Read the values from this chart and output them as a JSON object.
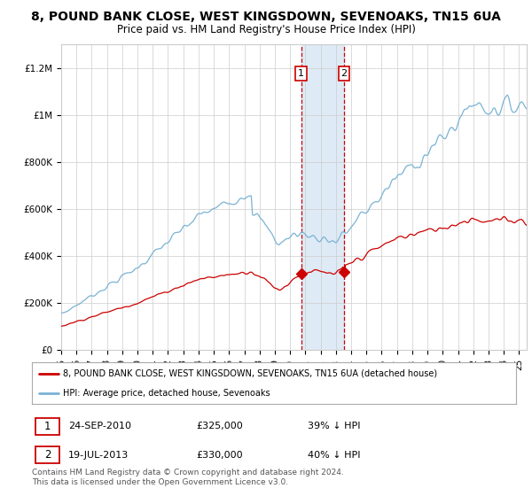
{
  "title": "8, POUND BANK CLOSE, WEST KINGSDOWN, SEVENOAKS, TN15 6UA",
  "subtitle": "Price paid vs. HM Land Registry's House Price Index (HPI)",
  "ylim": [
    0,
    1300000
  ],
  "yticks": [
    0,
    200000,
    400000,
    600000,
    800000,
    1000000,
    1200000
  ],
  "ytick_labels": [
    "£0",
    "£200K",
    "£400K",
    "£600K",
    "£800K",
    "£1M",
    "£1.2M"
  ],
  "hpi_color": "#7ab3d4",
  "price_color": "#cc0000",
  "purchase1_date": 2010.73,
  "purchase1_price": 325000,
  "purchase2_date": 2013.54,
  "purchase2_price": 330000,
  "highlight_color": "#deeaf5",
  "vline_color": "#cc0000",
  "legend_hpi_label": "HPI: Average price, detached house, Sevenoaks",
  "legend_price_label": "8, POUND BANK CLOSE, WEST KINGSDOWN, SEVENOAKS, TN15 6UA (detached house)",
  "annotation1_date": "24-SEP-2010",
  "annotation1_price": "£325,000",
  "annotation1_pct": "39% ↓ HPI",
  "annotation2_date": "19-JUL-2013",
  "annotation2_price": "£330,000",
  "annotation2_pct": "40% ↓ HPI",
  "footer": "Contains HM Land Registry data © Crown copyright and database right 2024.\nThis data is licensed under the Open Government Licence v3.0.",
  "bg_color": "#ffffff",
  "grid_color": "#cccccc",
  "title_fontsize": 10,
  "subtitle_fontsize": 8.5,
  "tick_fontsize": 7.5,
  "xstart": 1995.0,
  "xend": 2025.5
}
